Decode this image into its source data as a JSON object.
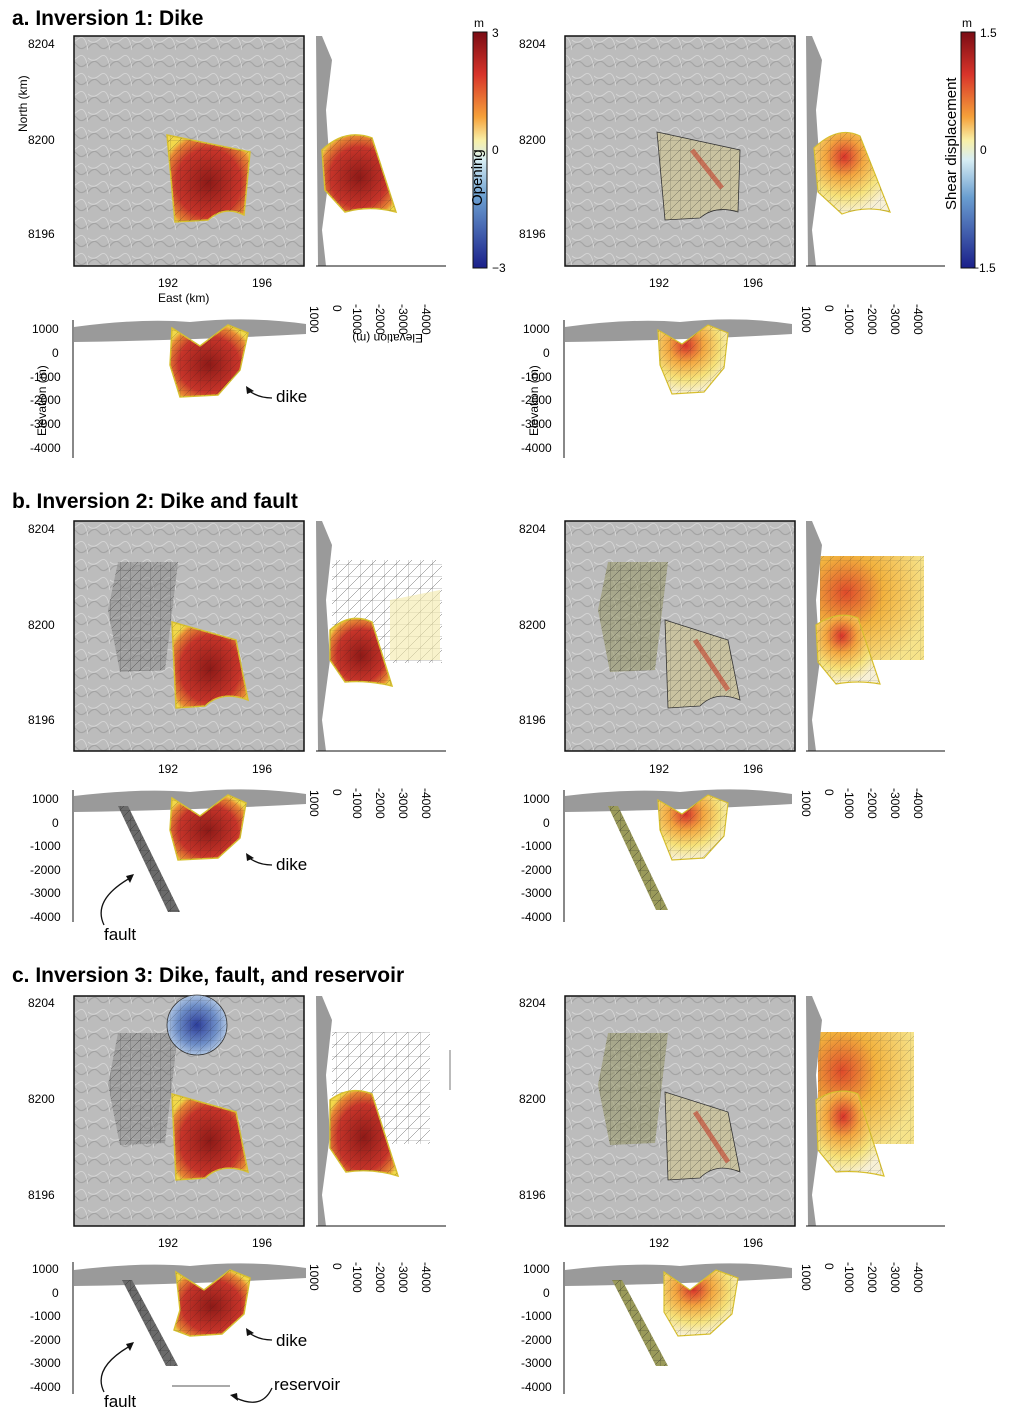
{
  "panels": [
    {
      "title": "a. Inversion 1: Dike",
      "labels": [
        "dike"
      ]
    },
    {
      "title": "b. Inversion 2: Dike and fault",
      "labels": [
        "dike",
        "fault"
      ]
    },
    {
      "title": "c. Inversion 3: Dike, fault, and reservoir",
      "labels": [
        "dike",
        "fault",
        "reservoir"
      ]
    }
  ],
  "axes": {
    "north_label": "North (km)",
    "east_label": "East (km)",
    "elevation_label": "Elevation (m)",
    "north_ticks": [
      "8204",
      "8200",
      "8196"
    ],
    "east_ticks": [
      "192",
      "196"
    ],
    "elev_ticks": [
      "1000",
      "0",
      "-1000",
      "-2000",
      "-3000",
      "-4000"
    ]
  },
  "colorbars": {
    "opening": {
      "unit": "m",
      "label": "Opening",
      "max": "3",
      "mid": "0",
      "min": "−3"
    },
    "shear": {
      "unit": "m",
      "label": "Shear displacement",
      "max": "1.5",
      "mid": "0",
      "min": "−1.5"
    }
  },
  "colors": {
    "dike_core": "#b22a22",
    "dike_edge": "#f2d84a",
    "reservoir": "#2c3d9a"
  }
}
